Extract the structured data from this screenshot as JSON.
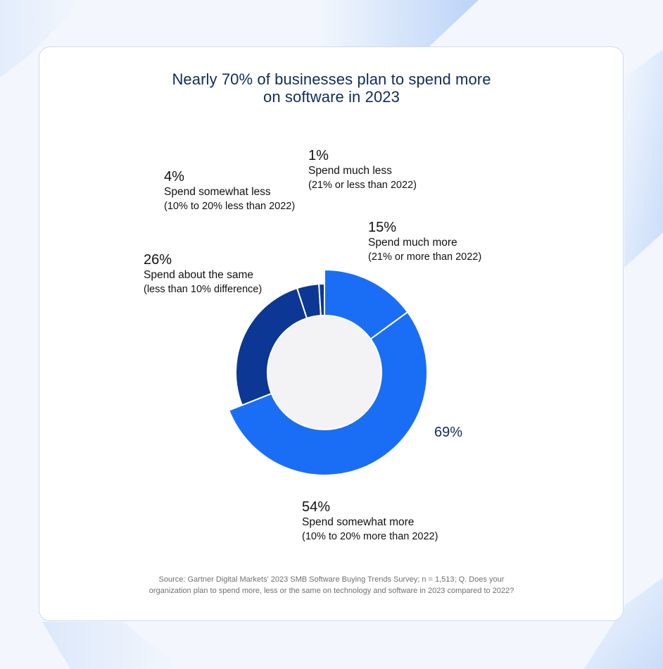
{
  "title": {
    "line1": "Nearly 70% of businesses plan to spend more",
    "line2": "on software in 2023"
  },
  "colors": {
    "bright_blue": "#1a6ef5",
    "dark_blue": "#0c3794",
    "center_fill": "#f3f3f5",
    "title_color": "#0f2d57"
  },
  "labels": {
    "much_less": {
      "pct": "1%",
      "name": "Spend much less",
      "sub": "(21% or less than 2022)"
    },
    "somewhat_less": {
      "pct": "4%",
      "name": "Spend somewhat less",
      "sub": "(10% to 20% less than 2022)"
    },
    "much_more": {
      "pct": "15%",
      "name": "Spend much more",
      "sub": "(21% or more than 2022)"
    },
    "about_same": {
      "pct": "26%",
      "name": "Spend about the same",
      "sub": "(less than 10% difference)"
    },
    "somewhat_more": {
      "pct": "54%",
      "name": "Spend somewhat more",
      "sub": "(10% to 20% more than 2022)"
    },
    "total_more": "69%"
  },
  "source": {
    "line1": "Source: Gartner Digital Markets' 2023 SMB Software Buying Trends Survey; n = 1,513; Q. Does your",
    "line2": "organization plan to spend more, less or the same on technology and software in 2023 compared to 2022?"
  },
  "chart_data": {
    "type": "pie",
    "subtype": "donut",
    "title": "Nearly 70% of businesses plan to spend more on software in 2023",
    "categories": [
      "Spend much more (21% or more than 2022)",
      "Spend somewhat more (10% to 20% more than 2022)",
      "Spend about the same (less than 10% difference)",
      "Spend somewhat less (10% to 20% less than 2022)",
      "Spend much less (21% or less than 2022)"
    ],
    "values": [
      15,
      54,
      26,
      4,
      1
    ],
    "unit": "%",
    "highlighted": [
      "Spend much more (21% or more than 2022)",
      "Spend somewhat more (10% to 20% more than 2022)"
    ],
    "highlight_total": 69,
    "annotations": [
      "69%"
    ],
    "start_angle_deg": 0,
    "direction": "clockwise",
    "legend": "none (direct labels)"
  }
}
